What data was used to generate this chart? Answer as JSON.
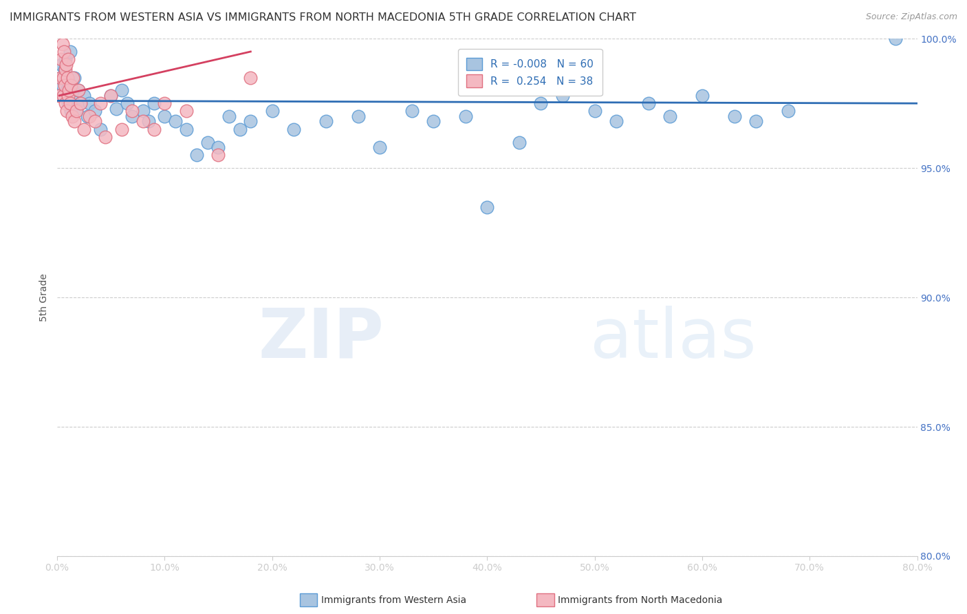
{
  "title": "IMMIGRANTS FROM WESTERN ASIA VS IMMIGRANTS FROM NORTH MACEDONIA 5TH GRADE CORRELATION CHART",
  "source": "Source: ZipAtlas.com",
  "ylabel": "5th Grade",
  "xlim": [
    0.0,
    80.0
  ],
  "ylim": [
    80.0,
    100.0
  ],
  "xticks": [
    0.0,
    10.0,
    20.0,
    30.0,
    40.0,
    50.0,
    60.0,
    70.0,
    80.0
  ],
  "yticks_right": [
    100.0,
    95.0,
    90.0,
    85.0,
    80.0
  ],
  "blue_color": "#a8c4e0",
  "blue_edge_color": "#5b9bd5",
  "pink_color": "#f4b8c1",
  "pink_edge_color": "#e07080",
  "blue_line_color": "#2e6db4",
  "pink_line_color": "#d44060",
  "grid_color": "#cccccc",
  "title_color": "#333333",
  "axis_label_color": "#555555",
  "tick_label_color_y": "#4472c4",
  "tick_label_color_x": "#333333",
  "legend_R_blue": "-0.008",
  "legend_N_blue": "60",
  "legend_R_pink": "0.254",
  "legend_N_pink": "38",
  "blue_scatter_x": [
    0.3,
    0.4,
    0.5,
    0.6,
    0.7,
    0.8,
    0.9,
    1.0,
    1.1,
    1.2,
    1.3,
    1.4,
    1.5,
    1.6,
    1.8,
    2.0,
    2.2,
    2.5,
    2.8,
    3.0,
    3.5,
    4.0,
    5.0,
    5.5,
    6.0,
    6.5,
    7.0,
    8.0,
    8.5,
    9.0,
    10.0,
    11.0,
    12.0,
    13.0,
    14.0,
    15.0,
    16.0,
    17.0,
    18.0,
    20.0,
    22.0,
    25.0,
    28.0,
    30.0,
    33.0,
    35.0,
    38.0,
    40.0,
    43.0,
    45.0,
    47.0,
    50.0,
    52.0,
    55.0,
    57.0,
    60.0,
    63.0,
    65.0,
    68.0,
    78.0
  ],
  "blue_scatter_y": [
    98.5,
    99.0,
    98.2,
    97.8,
    98.8,
    99.2,
    98.0,
    97.5,
    98.3,
    99.5,
    97.2,
    98.0,
    97.8,
    98.5,
    97.3,
    98.0,
    97.5,
    97.8,
    97.0,
    97.5,
    97.2,
    96.5,
    97.8,
    97.3,
    98.0,
    97.5,
    97.0,
    97.2,
    96.8,
    97.5,
    97.0,
    96.8,
    96.5,
    95.5,
    96.0,
    95.8,
    97.0,
    96.5,
    96.8,
    97.2,
    96.5,
    96.8,
    97.0,
    95.8,
    97.2,
    96.8,
    97.0,
    93.5,
    96.0,
    97.5,
    97.8,
    97.2,
    96.8,
    97.5,
    97.0,
    97.8,
    97.0,
    96.8,
    97.2,
    100.0
  ],
  "pink_scatter_x": [
    0.2,
    0.3,
    0.4,
    0.5,
    0.55,
    0.6,
    0.65,
    0.7,
    0.75,
    0.8,
    0.85,
    0.9,
    0.95,
    1.0,
    1.05,
    1.1,
    1.2,
    1.3,
    1.4,
    1.5,
    1.6,
    1.8,
    2.0,
    2.2,
    2.5,
    3.0,
    3.5,
    4.0,
    4.5,
    5.0,
    6.0,
    7.0,
    8.0,
    9.0,
    10.0,
    12.0,
    15.0,
    18.0
  ],
  "pink_scatter_y": [
    97.8,
    98.5,
    99.2,
    99.8,
    98.5,
    97.8,
    99.5,
    98.2,
    97.5,
    98.8,
    99.0,
    97.2,
    98.5,
    97.8,
    99.2,
    98.0,
    97.5,
    98.2,
    97.0,
    98.5,
    96.8,
    97.2,
    98.0,
    97.5,
    96.5,
    97.0,
    96.8,
    97.5,
    96.2,
    97.8,
    96.5,
    97.2,
    96.8,
    96.5,
    97.5,
    97.2,
    95.5,
    98.5
  ],
  "blue_trend_x": [
    0.0,
    80.0
  ],
  "blue_trend_y": [
    97.6,
    97.5
  ],
  "pink_trend_x": [
    0.2,
    18.0
  ],
  "pink_trend_y": [
    97.8,
    99.5
  ],
  "watermark_zip": "ZIP",
  "watermark_atlas": "atlas",
  "figsize": [
    14.06,
    8.92
  ],
  "dpi": 100
}
